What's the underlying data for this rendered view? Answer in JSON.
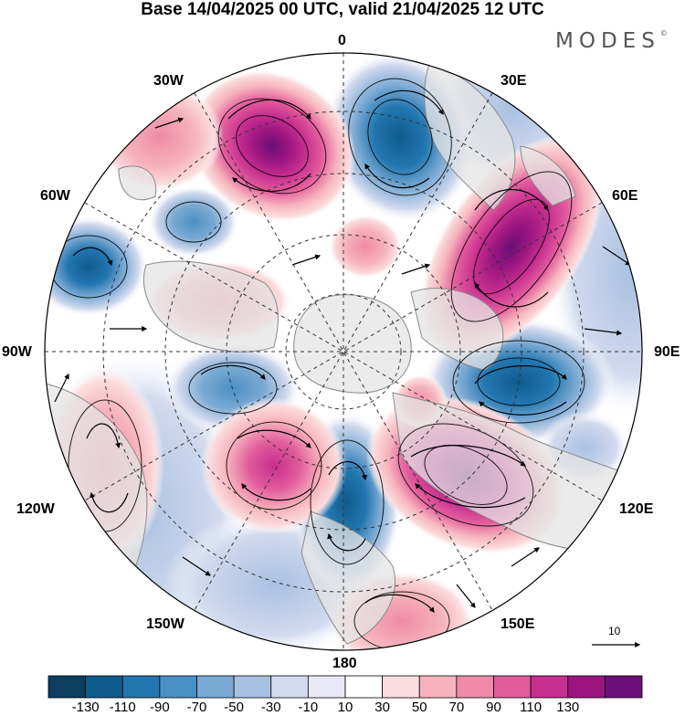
{
  "title": "Base 14/04/2025 00 UTC, valid 21/04/2025 12 UTC",
  "brand": "MODES",
  "brand_mark": "©",
  "map": {
    "projection": "north-polar-stereographic",
    "longitude_labels": {
      "top": "0",
      "bottom": "180",
      "left": "90W",
      "right": "90E",
      "upper_left_1": "30W",
      "upper_left_2": "60W",
      "upper_right_1": "30E",
      "upper_right_2": "60E",
      "lower_left_1": "120W",
      "lower_left_2": "150W",
      "lower_right_1": "120E",
      "lower_right_2": "150E"
    },
    "reference_vector_label": "10",
    "colors": {
      "land": "#e4e4e4",
      "coast": "#8a8a8a",
      "grid": "#333333"
    }
  },
  "colorbar": {
    "ticks": [
      "-130",
      "-110",
      "-90",
      "-70",
      "-50",
      "-30",
      "-10",
      "10",
      "30",
      "50",
      "70",
      "90",
      "110",
      "130"
    ],
    "colors": [
      "#0b3e5f",
      "#0f5b8c",
      "#2276b0",
      "#4990c4",
      "#7aa9d3",
      "#a9c1e1",
      "#d2daee",
      "#e9e9f5",
      "#ffffff",
      "#fbdcde",
      "#f6b3bd",
      "#f08aa8",
      "#e25c9c",
      "#c62e8f",
      "#9b157f",
      "#6a0f78"
    ]
  }
}
